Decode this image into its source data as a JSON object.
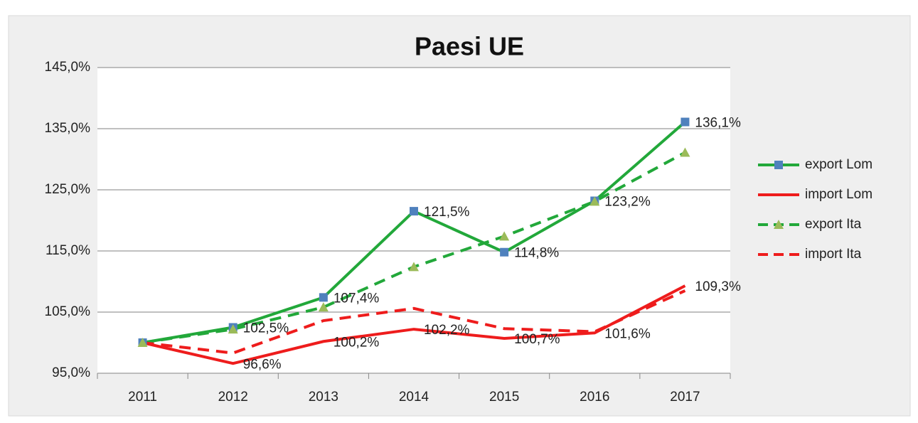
{
  "chart_data": {
    "type": "line",
    "title": "Paesi UE",
    "categories": [
      "2011",
      "2012",
      "2013",
      "2014",
      "2015",
      "2016",
      "2017"
    ],
    "series": [
      {
        "name": "export Lom",
        "color": "#22a83a",
        "dash": false,
        "marker": "square",
        "marker_color": "#4f81bd",
        "values": [
          100,
          102.5,
          107.4,
          121.5,
          114.8,
          123.2,
          136.1
        ],
        "value_labels": [
          null,
          "102,5%",
          "107,4%",
          "121,5%",
          "114,8%",
          "123,2%",
          "136,1%"
        ]
      },
      {
        "name": "import Lom",
        "color": "#ee1c1c",
        "dash": false,
        "marker": null,
        "values": [
          100,
          96.6,
          100.2,
          102.2,
          100.7,
          101.6,
          109.3
        ],
        "value_labels": [
          null,
          "96,6%",
          "100,2%",
          "102,2%",
          "100,7%",
          "101,6%",
          "109,3%"
        ]
      },
      {
        "name": "export Ita",
        "color": "#22a83a",
        "dash": true,
        "marker": "triangle",
        "marker_color": "#9bbb59",
        "values": [
          100,
          102.2,
          105.8,
          112.4,
          117.4,
          123.1,
          131.1
        ]
      },
      {
        "name": "import Ita",
        "color": "#ee1c1c",
        "dash": true,
        "marker": null,
        "values": [
          100,
          98.3,
          103.6,
          105.6,
          102.3,
          101.8,
          108.5
        ]
      }
    ],
    "ylim": [
      95,
      145
    ],
    "yticks": [
      {
        "value": 95,
        "label": "95,0%"
      },
      {
        "value": 105,
        "label": "105,0%"
      },
      {
        "value": 115,
        "label": "115,0%"
      },
      {
        "value": 125,
        "label": "125,0%"
      },
      {
        "value": 135,
        "label": "135,0%"
      },
      {
        "value": 145,
        "label": "145,0%"
      }
    ],
    "grid": true,
    "legend": "right"
  }
}
